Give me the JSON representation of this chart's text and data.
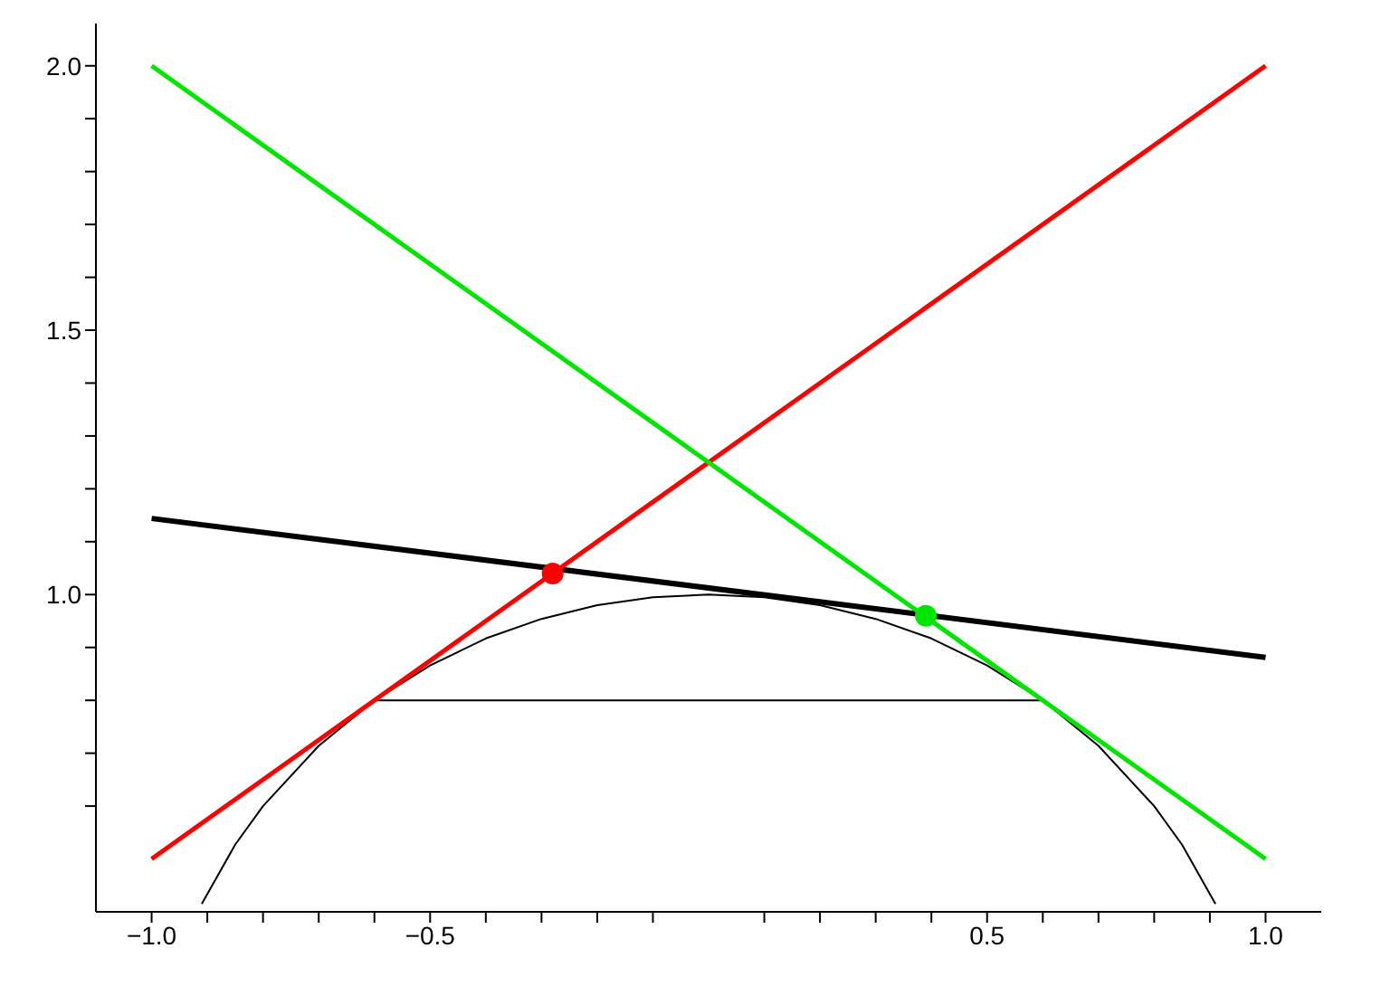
{
  "chart_data": {
    "type": "line",
    "xlim": [
      -1.1,
      1.1
    ],
    "ylim": [
      0.4,
      2.08
    ],
    "xticks": [
      {
        "value": -1,
        "label": "−1.0"
      },
      {
        "value": -0.9,
        "label": null
      },
      {
        "value": -0.8,
        "label": null
      },
      {
        "value": -0.7,
        "label": null
      },
      {
        "value": -0.6,
        "label": null
      },
      {
        "value": -0.5,
        "label": "−0.5"
      },
      {
        "value": -0.4,
        "label": null
      },
      {
        "value": -0.3,
        "label": null
      },
      {
        "value": -0.2,
        "label": null
      },
      {
        "value": -0.1,
        "label": null
      },
      {
        "value": 0.1,
        "label": null
      },
      {
        "value": 0.2,
        "label": null
      },
      {
        "value": 0.3,
        "label": null
      },
      {
        "value": 0.4,
        "label": null
      },
      {
        "value": 0.5,
        "label": "0.5"
      },
      {
        "value": 0.6,
        "label": null
      },
      {
        "value": 0.7,
        "label": null
      },
      {
        "value": 0.8,
        "label": null
      },
      {
        "value": 0.9,
        "label": null
      },
      {
        "value": 1,
        "label": "1.0"
      }
    ],
    "yticks": [
      {
        "value": 0.6,
        "label": null
      },
      {
        "value": 0.7,
        "label": null
      },
      {
        "value": 0.8,
        "label": null
      },
      {
        "value": 0.9,
        "label": null
      },
      {
        "value": 1,
        "label": "1.0"
      },
      {
        "value": 1.1,
        "label": null
      },
      {
        "value": 1.2,
        "label": null
      },
      {
        "value": 1.3,
        "label": null
      },
      {
        "value": 1.4,
        "label": null
      },
      {
        "value": 1.5,
        "label": "1.5"
      },
      {
        "value": 1.6,
        "label": null
      },
      {
        "value": 1.7,
        "label": null
      },
      {
        "value": 1.8,
        "label": null
      },
      {
        "value": 1.9,
        "label": null
      },
      {
        "value": 2,
        "label": "2.0"
      }
    ],
    "grid": false,
    "line_style": "solid",
    "series": [
      {
        "color": "#000000",
        "x": [
          -0.91,
          -0.85,
          -0.8,
          -0.7,
          -0.6,
          -0.5,
          -0.4,
          -0.3,
          -0.2,
          -0.1,
          0,
          0.1,
          0.2,
          0.3,
          0.4,
          0.5,
          0.6,
          0.7,
          0.8,
          0.85,
          0.91
        ],
        "values": [
          0.415,
          0.527,
          0.6,
          0.714,
          0.8,
          0.866,
          0.917,
          0.954,
          0.98,
          0.995,
          1,
          0.995,
          0.98,
          0.954,
          0.917,
          0.866,
          0.8,
          0.714,
          0.6,
          0.527,
          0.415
        ]
      },
      {
        "color": "#000000",
        "x": [
          -0.6,
          0.6
        ],
        "values": [
          0.8,
          0.8
        ]
      },
      {
        "color": "#000000",
        "x": [
          -1,
          1
        ],
        "values": [
          1.144,
          0.881
        ]
      },
      {
        "color": "#ff0000",
        "x": [
          -1,
          1
        ],
        "values": [
          0.5,
          2.0
        ]
      },
      {
        "color": "#00e600",
        "x": [
          -1,
          1
        ],
        "values": [
          2.0,
          0.5
        ]
      },
      {
        "type": "scatter",
        "marker": "circle",
        "color": "#ff0000",
        "x": [
          -0.28
        ],
        "values": [
          1.04
        ]
      },
      {
        "type": "scatter",
        "marker": "circle",
        "color": "#00e600",
        "x": [
          0.39
        ],
        "values": [
          0.96
        ]
      }
    ]
  }
}
